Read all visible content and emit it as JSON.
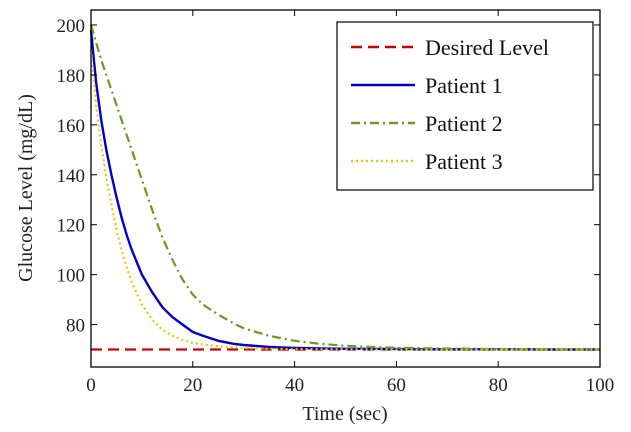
{
  "chart_data": {
    "type": "line",
    "xlabel": "Time (sec)",
    "ylabel": "Glucose Level (mg/dL)",
    "xlim": [
      0,
      100
    ],
    "ylim": [
      63,
      206
    ],
    "xticks": [
      0,
      20,
      40,
      60,
      80,
      100
    ],
    "yticks": [
      80,
      100,
      120,
      140,
      160,
      180,
      200
    ],
    "grid": false,
    "legend_position": "top-right",
    "series": [
      {
        "name": "Desired Level",
        "color": "#cc0000",
        "style": "dashed",
        "x": [
          0,
          100
        ],
        "y": [
          70,
          70
        ]
      },
      {
        "name": "Patient 1",
        "color": "#0000cc",
        "style": "solid",
        "x": [
          0,
          1,
          2,
          3,
          4,
          5,
          6,
          7,
          8,
          10,
          12,
          14,
          16,
          18,
          20,
          22,
          25,
          28,
          30,
          35,
          40,
          45,
          50,
          60,
          70,
          80,
          90,
          100
        ],
        "y": [
          198,
          177,
          162,
          150,
          140,
          131,
          123,
          116,
          110,
          100,
          93,
          87,
          83,
          80,
          77,
          75.5,
          73.5,
          72.3,
          71.8,
          71,
          70.6,
          70.4,
          70.3,
          70.2,
          70.1,
          70.1,
          70,
          70
        ]
      },
      {
        "name": "Patient 2",
        "color": "#6a9a1f",
        "style": "dashdot",
        "x": [
          0,
          2,
          4,
          6,
          8,
          10,
          12,
          14,
          16,
          18,
          20,
          22,
          25,
          28,
          30,
          35,
          40,
          45,
          50,
          55,
          60,
          70,
          80,
          90,
          100
        ],
        "y": [
          200,
          186,
          174,
          162,
          150,
          138,
          126,
          115,
          106,
          98,
          92,
          88,
          84,
          80.5,
          78.5,
          75.5,
          73.5,
          72.3,
          71.5,
          71,
          70.7,
          70.4,
          70.2,
          70.1,
          70
        ]
      },
      {
        "name": "Patient 3",
        "color": "#e8c800",
        "style": "dotted",
        "x": [
          0,
          1,
          2,
          3,
          4,
          5,
          6,
          7,
          8,
          10,
          12,
          14,
          16,
          18,
          20,
          22,
          25,
          30,
          35,
          40,
          50,
          60,
          80,
          100
        ],
        "y": [
          190,
          168,
          152,
          139,
          128,
          118,
          110,
          103,
          97,
          88,
          82,
          78,
          75.5,
          73.8,
          72.7,
          72,
          71.3,
          70.6,
          70.3,
          70.2,
          70.1,
          70,
          70,
          70
        ]
      }
    ]
  }
}
